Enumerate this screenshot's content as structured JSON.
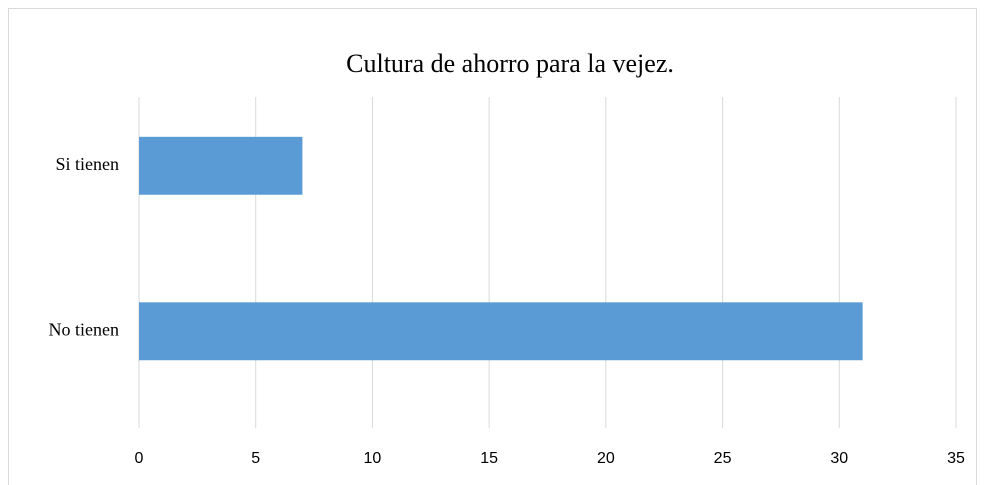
{
  "chart_data": {
    "type": "bar",
    "orientation": "horizontal",
    "title": "Cultura de ahorro para la vejez.",
    "categories": [
      "Si tienen",
      "No tienen"
    ],
    "values": [
      7,
      31
    ],
    "color": "#5b9bd5",
    "xlim": [
      0,
      35
    ],
    "xticks": [
      0,
      5,
      10,
      15,
      20,
      25,
      30,
      35
    ],
    "grid": true
  }
}
